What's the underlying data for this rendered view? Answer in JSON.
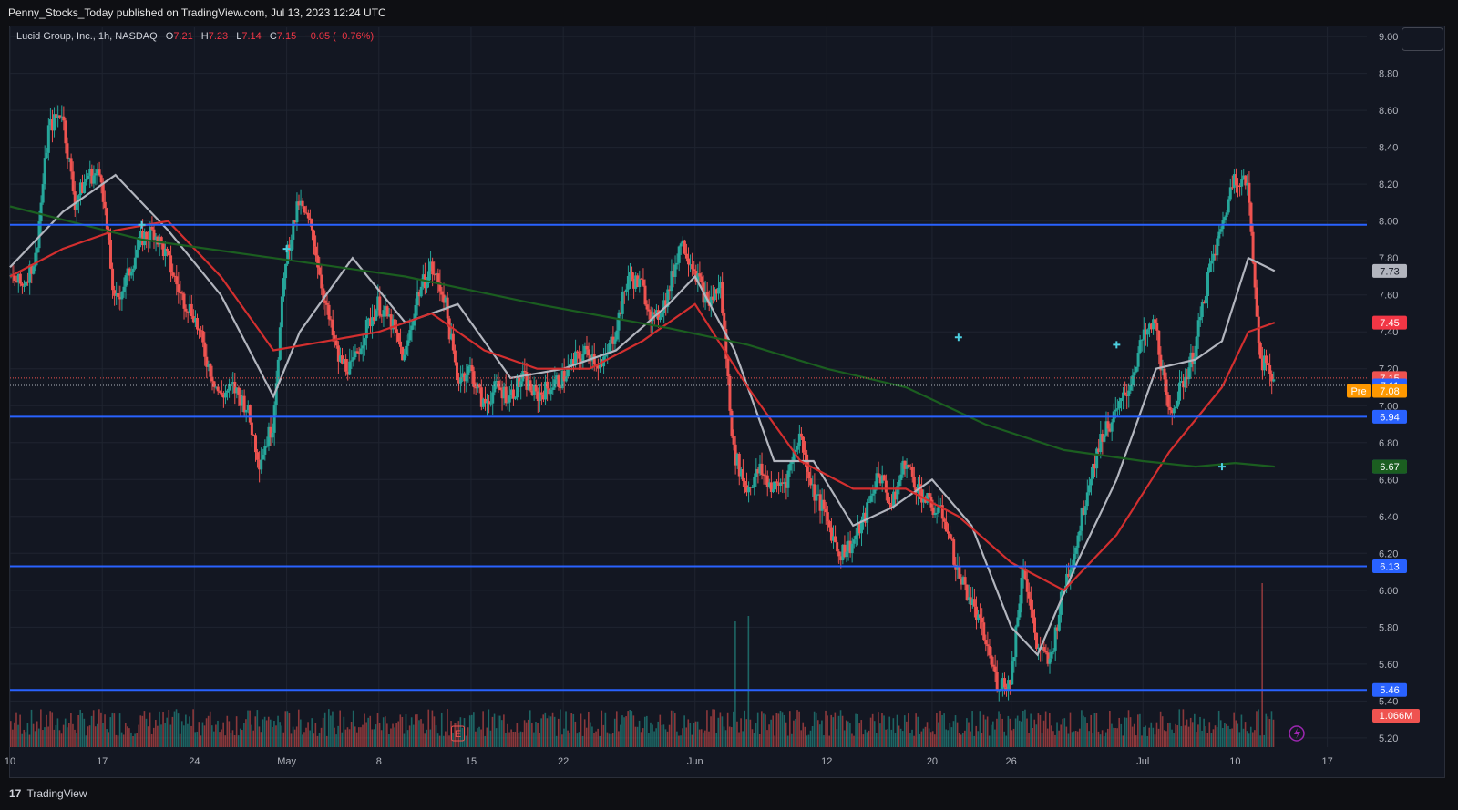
{
  "header": {
    "publisher_line": "Penny_Stocks_Today published on TradingView.com, Jul 13, 2023 12:24 UTC"
  },
  "legend": {
    "symbol": "Lucid Group, Inc., 1h, NASDAQ",
    "o_label": "O",
    "o_value": "7.21",
    "h_label": "H",
    "h_value": "7.23",
    "l_label": "L",
    "l_value": "7.14",
    "c_label": "C",
    "c_value": "7.15",
    "change": "−0.05 (−0.76%)"
  },
  "footer": {
    "brand": "TradingView",
    "logo_glyph": "17"
  },
  "colors": {
    "background": "#131722",
    "grid": "#1f2430",
    "up": "#26a69a",
    "down": "#ef5350",
    "level_line": "#2962ff",
    "ma_gray": "#b2b5be",
    "ma_red": "#d32f2f",
    "ma_green": "#1b5e20"
  },
  "chart_data": {
    "type": "candlestick",
    "y_axis": {
      "ticks": [
        9.0,
        8.8,
        8.6,
        8.4,
        8.2,
        8.0,
        7.8,
        7.6,
        7.4,
        7.2,
        7.0,
        6.8,
        6.6,
        6.4,
        6.2,
        6.0,
        5.8,
        5.6,
        5.4,
        5.2
      ],
      "tick_labels": [
        "9.00",
        "8.80",
        "8.60",
        "8.40",
        "8.20",
        "8.00",
        "7.80",
        "7.60",
        "7.40",
        "7.20",
        "7.00",
        "6.80",
        "6.60",
        "6.40",
        "6.20",
        "6.00",
        "5.80",
        "5.60",
        "5.40",
        "5.20"
      ],
      "ylim": [
        5.15,
        9.05
      ]
    },
    "x_axis": {
      "ticks": [
        "10",
        "17",
        "24",
        "May",
        "8",
        "15",
        "22",
        "Jun",
        "12",
        "20",
        "26",
        "Jul",
        "10",
        "17"
      ],
      "day_index": [
        0,
        7,
        14,
        21,
        28,
        35,
        42,
        52,
        62,
        70,
        76,
        86,
        93,
        100
      ],
      "xlim": [
        0,
        103
      ]
    },
    "horizontal_levels": [
      {
        "price": 7.98,
        "label": "7.98"
      },
      {
        "price": 6.94,
        "label": "6.94"
      },
      {
        "price": 6.13,
        "label": "6.13"
      },
      {
        "price": 5.46,
        "label": "5.46"
      }
    ],
    "price_labels": [
      {
        "value": 7.73,
        "label": "7.73",
        "bg": "#b2b5be",
        "fg": "#131722"
      },
      {
        "value": 7.45,
        "label": "7.45",
        "bg": "#f23645",
        "fg": "#ffffff"
      },
      {
        "value": 7.15,
        "label": "7.15",
        "bg": "#ef5350",
        "fg": "#ffffff"
      },
      {
        "value": 7.11,
        "label": "7.11",
        "bg": "#2962ff",
        "fg": "#ffffff"
      },
      {
        "value": 7.08,
        "label": "7.08",
        "bg": "#ff9800",
        "fg": "#ffffff",
        "prefix": "Pre"
      },
      {
        "value": 6.94,
        "label": "6.94",
        "bg": "#2962ff",
        "fg": "#ffffff"
      },
      {
        "value": 6.67,
        "label": "6.67",
        "bg": "#26a69a",
        "fg": "#ffffff"
      },
      {
        "value": 6.67,
        "label": "6.67",
        "bg": "#1b5e20",
        "fg": "#ffffff"
      },
      {
        "value": 6.13,
        "label": "6.13",
        "bg": "#2962ff",
        "fg": "#ffffff"
      },
      {
        "value": 5.46,
        "label": "5.46",
        "bg": "#2962ff",
        "fg": "#ffffff"
      }
    ],
    "volume_label": "1.066M",
    "earnings_marker": {
      "day": 34,
      "label": "E"
    },
    "close_path": [
      [
        0,
        7.7
      ],
      [
        1,
        7.65
      ],
      [
        2,
        7.8
      ],
      [
        3,
        8.5
      ],
      [
        4,
        8.6
      ],
      [
        5,
        8.1
      ],
      [
        6,
        8.25
      ],
      [
        7,
        8.25
      ],
      [
        8,
        7.55
      ],
      [
        9,
        7.7
      ],
      [
        10,
        7.9
      ],
      [
        11,
        7.95
      ],
      [
        12,
        7.8
      ],
      [
        13,
        7.6
      ],
      [
        14,
        7.5
      ],
      [
        15,
        7.25
      ],
      [
        16,
        7.05
      ],
      [
        17,
        7.1
      ],
      [
        18,
        7.0
      ],
      [
        19,
        6.7
      ],
      [
        20,
        6.9
      ],
      [
        21,
        7.8
      ],
      [
        22,
        8.1
      ],
      [
        23,
        7.95
      ],
      [
        24,
        7.55
      ],
      [
        25,
        7.25
      ],
      [
        26,
        7.2
      ],
      [
        27,
        7.4
      ],
      [
        28,
        7.55
      ],
      [
        29,
        7.45
      ],
      [
        30,
        7.25
      ],
      [
        31,
        7.6
      ],
      [
        32,
        7.75
      ],
      [
        33,
        7.6
      ],
      [
        34,
        7.15
      ],
      [
        35,
        7.2
      ],
      [
        36,
        7.0
      ],
      [
        37,
        7.1
      ],
      [
        38,
        7.05
      ],
      [
        39,
        7.15
      ],
      [
        40,
        7.05
      ],
      [
        41,
        7.1
      ],
      [
        42,
        7.15
      ],
      [
        43,
        7.25
      ],
      [
        44,
        7.3
      ],
      [
        45,
        7.2
      ],
      [
        46,
        7.4
      ],
      [
        47,
        7.7
      ],
      [
        48,
        7.65
      ],
      [
        49,
        7.45
      ],
      [
        50,
        7.6
      ],
      [
        51,
        7.9
      ],
      [
        52,
        7.75
      ],
      [
        53,
        7.55
      ],
      [
        54,
        7.65
      ],
      [
        55,
        6.75
      ],
      [
        56,
        6.55
      ],
      [
        57,
        6.65
      ],
      [
        58,
        6.55
      ],
      [
        59,
        6.6
      ],
      [
        60,
        6.85
      ],
      [
        61,
        6.55
      ],
      [
        62,
        6.4
      ],
      [
        63,
        6.2
      ],
      [
        64,
        6.25
      ],
      [
        65,
        6.4
      ],
      [
        66,
        6.65
      ],
      [
        67,
        6.45
      ],
      [
        68,
        6.7
      ],
      [
        69,
        6.55
      ],
      [
        70,
        6.45
      ],
      [
        71,
        6.4
      ],
      [
        72,
        6.1
      ],
      [
        73,
        5.95
      ],
      [
        74,
        5.75
      ],
      [
        75,
        5.5
      ],
      [
        76,
        5.5
      ],
      [
        77,
        6.15
      ],
      [
        78,
        5.7
      ],
      [
        79,
        5.6
      ],
      [
        80,
        6.0
      ],
      [
        81,
        6.25
      ],
      [
        82,
        6.6
      ],
      [
        83,
        6.85
      ],
      [
        84,
        6.95
      ],
      [
        85,
        7.1
      ],
      [
        86,
        7.35
      ],
      [
        87,
        7.45
      ],
      [
        88,
        6.95
      ],
      [
        89,
        7.1
      ],
      [
        90,
        7.3
      ],
      [
        91,
        7.7
      ],
      [
        92,
        7.95
      ],
      [
        93,
        8.25
      ],
      [
        94,
        8.2
      ],
      [
        95,
        7.25
      ],
      [
        96,
        7.15
      ]
    ],
    "moving_averages": [
      {
        "color": "#b2b5be",
        "points": [
          [
            0,
            7.75
          ],
          [
            4,
            8.05
          ],
          [
            8,
            8.25
          ],
          [
            12,
            7.95
          ],
          [
            16,
            7.6
          ],
          [
            20,
            7.05
          ],
          [
            22,
            7.4
          ],
          [
            26,
            7.8
          ],
          [
            30,
            7.45
          ],
          [
            34,
            7.55
          ],
          [
            38,
            7.15
          ],
          [
            42,
            7.2
          ],
          [
            46,
            7.3
          ],
          [
            50,
            7.55
          ],
          [
            52,
            7.7
          ],
          [
            55,
            7.3
          ],
          [
            58,
            6.7
          ],
          [
            61,
            6.7
          ],
          [
            64,
            6.35
          ],
          [
            67,
            6.45
          ],
          [
            70,
            6.6
          ],
          [
            73,
            6.35
          ],
          [
            76,
            5.8
          ],
          [
            78,
            5.65
          ],
          [
            81,
            6.15
          ],
          [
            84,
            6.6
          ],
          [
            87,
            7.2
          ],
          [
            90,
            7.25
          ],
          [
            92,
            7.35
          ],
          [
            94,
            7.8
          ],
          [
            96,
            7.73
          ]
        ]
      },
      {
        "color": "#d32f2f",
        "points": [
          [
            0,
            7.7
          ],
          [
            4,
            7.85
          ],
          [
            8,
            7.95
          ],
          [
            12,
            8.0
          ],
          [
            16,
            7.7
          ],
          [
            20,
            7.3
          ],
          [
            24,
            7.35
          ],
          [
            28,
            7.4
          ],
          [
            32,
            7.5
          ],
          [
            36,
            7.3
          ],
          [
            40,
            7.2
          ],
          [
            44,
            7.2
          ],
          [
            48,
            7.35
          ],
          [
            52,
            7.55
          ],
          [
            56,
            7.1
          ],
          [
            60,
            6.7
          ],
          [
            64,
            6.55
          ],
          [
            68,
            6.55
          ],
          [
            72,
            6.4
          ],
          [
            76,
            6.15
          ],
          [
            80,
            6.0
          ],
          [
            84,
            6.3
          ],
          [
            88,
            6.75
          ],
          [
            92,
            7.1
          ],
          [
            94,
            7.4
          ],
          [
            96,
            7.45
          ]
        ]
      },
      {
        "color": "#1b5e20",
        "points": [
          [
            0,
            8.08
          ],
          [
            10,
            7.9
          ],
          [
            20,
            7.8
          ],
          [
            30,
            7.7
          ],
          [
            40,
            7.55
          ],
          [
            50,
            7.42
          ],
          [
            56,
            7.33
          ],
          [
            62,
            7.2
          ],
          [
            68,
            7.1
          ],
          [
            74,
            6.9
          ],
          [
            80,
            6.76
          ],
          [
            86,
            6.7
          ],
          [
            90,
            6.67
          ],
          [
            93,
            6.69
          ],
          [
            96,
            6.67
          ]
        ]
      }
    ],
    "volume_spikes": [
      {
        "day": 55,
        "value": 1.15
      },
      {
        "day": 56,
        "value": 1.2
      },
      {
        "day": 95,
        "value": 1.5
      }
    ]
  }
}
